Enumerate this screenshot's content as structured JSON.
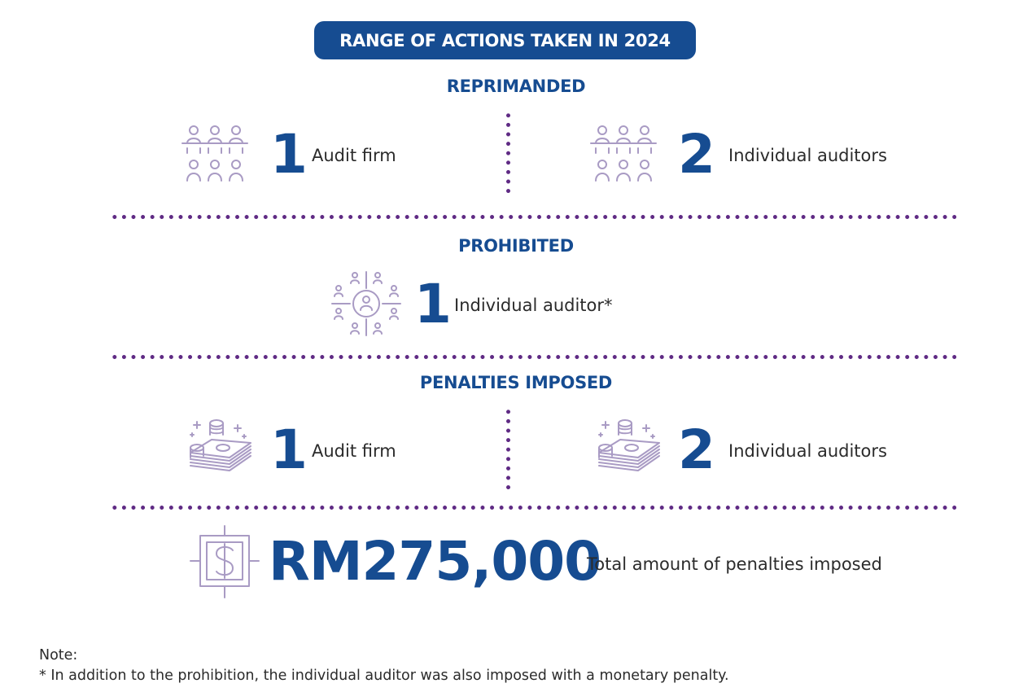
{
  "title": "RANGE OF ACTIONS TAKEN IN 2024",
  "colors": {
    "primary": "#164c91",
    "dots": "#5f2a84",
    "icon": "#a99bc4"
  },
  "reprimanded": {
    "heading": "REPRIMANDED",
    "left": {
      "value": "1",
      "label": "Audit firm",
      "icon": "people-group-icon"
    },
    "right": {
      "value": "2",
      "label": "Individual auditors",
      "icon": "people-group-icon"
    }
  },
  "prohibited": {
    "heading": "PROHIBITED",
    "item": {
      "value": "1",
      "label": "Individual auditor*",
      "icon": "target-person-icon"
    }
  },
  "penalties": {
    "heading": "PENALTIES IMPOSED",
    "left": {
      "value": "1",
      "label": "Audit firm",
      "icon": "money-stack-icon"
    },
    "right": {
      "value": "2",
      "label": "Individual auditors",
      "icon": "money-stack-icon"
    }
  },
  "total": {
    "amount": "RM275,000",
    "label": "Total amount of penalties imposed",
    "icon": "dollar-box-icon"
  },
  "note": {
    "heading": "Note:",
    "text": "*  In addition to the prohibition, the individual auditor was also imposed with a monetary penalty."
  }
}
